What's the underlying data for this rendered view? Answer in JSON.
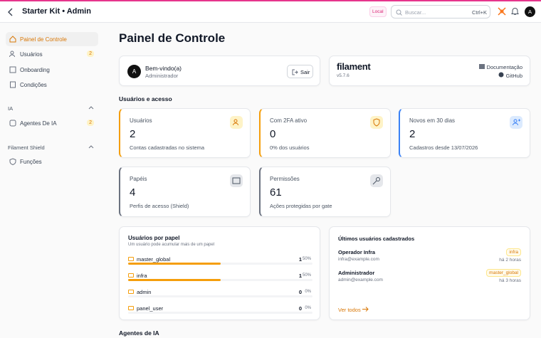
{
  "header": {
    "title": "Starter Kit • Admin",
    "env_badge": "Local",
    "search_placeholder": "Buscar...",
    "search_shortcut": "Ctrl+K",
    "avatar": "A"
  },
  "sidebar": {
    "items": [
      {
        "label": "Painel de Controle"
      },
      {
        "label": "Usuários",
        "badge": 2
      },
      {
        "label": "Onboarding"
      },
      {
        "label": "Condições"
      }
    ],
    "groups": [
      {
        "label": "IA",
        "items": [
          {
            "label": "Agentes De IA",
            "badge": 2
          }
        ]
      },
      {
        "label": "Filament Shield",
        "items": [
          {
            "label": "Funções"
          }
        ]
      }
    ]
  },
  "page": {
    "title": "Painel de Controle"
  },
  "welcome": {
    "avatar": "A",
    "greeting": "Bem-vindo(a)",
    "role": "Administrador",
    "button": "Sair"
  },
  "info": {
    "brand": "filament",
    "version": "v5.7.6",
    "links": [
      "Documentação",
      "GitHub"
    ]
  },
  "section_title": "Usuários e acesso",
  "stats": [
    {
      "label": "Usuários",
      "value": 2,
      "description": "Contas cadastradas no sistema"
    },
    {
      "label": "Com 2FA ativo",
      "value": 0,
      "description": "0% dos usuários"
    },
    {
      "label": "Novos em 30 dias",
      "value": 2,
      "description": "Cadastros desde 13/07/2026"
    },
    {
      "label": "Papéis",
      "value": 4,
      "description": "Perfis de acesso (Shield)"
    },
    {
      "label": "Permissões",
      "value": 61,
      "description": "Ações protegidas por gate"
    }
  ],
  "roles": {
    "title": "Usuários por papel",
    "subtitle": "Um usuário pode acumular mais de um papel",
    "rows": [
      {
        "name": "master_global",
        "count": 1,
        "share": {
          "value": 50,
          "label": "50%"
        }
      },
      {
        "name": "infra",
        "count": 1,
        "share": {
          "value": 50,
          "label": "50%"
        }
      },
      {
        "name": "admin",
        "count": 0,
        "share": {
          "value": 0,
          "label": "0%"
        }
      },
      {
        "name": "panel_user",
        "count": 0,
        "share": {
          "value": 0,
          "label": "0%"
        }
      }
    ]
  },
  "latest": {
    "title": "Últimos usuários cadastrados",
    "users": [
      {
        "name": "Operador Infra",
        "email": "infra@example.com",
        "role": "infra",
        "time": "há 2 horas"
      },
      {
        "name": "Administrador",
        "email": "admin@example.com",
        "role": "master_global",
        "time": "há 3 horas"
      }
    ],
    "link": "Ver todos"
  },
  "next_section": "Agentes de IA"
}
